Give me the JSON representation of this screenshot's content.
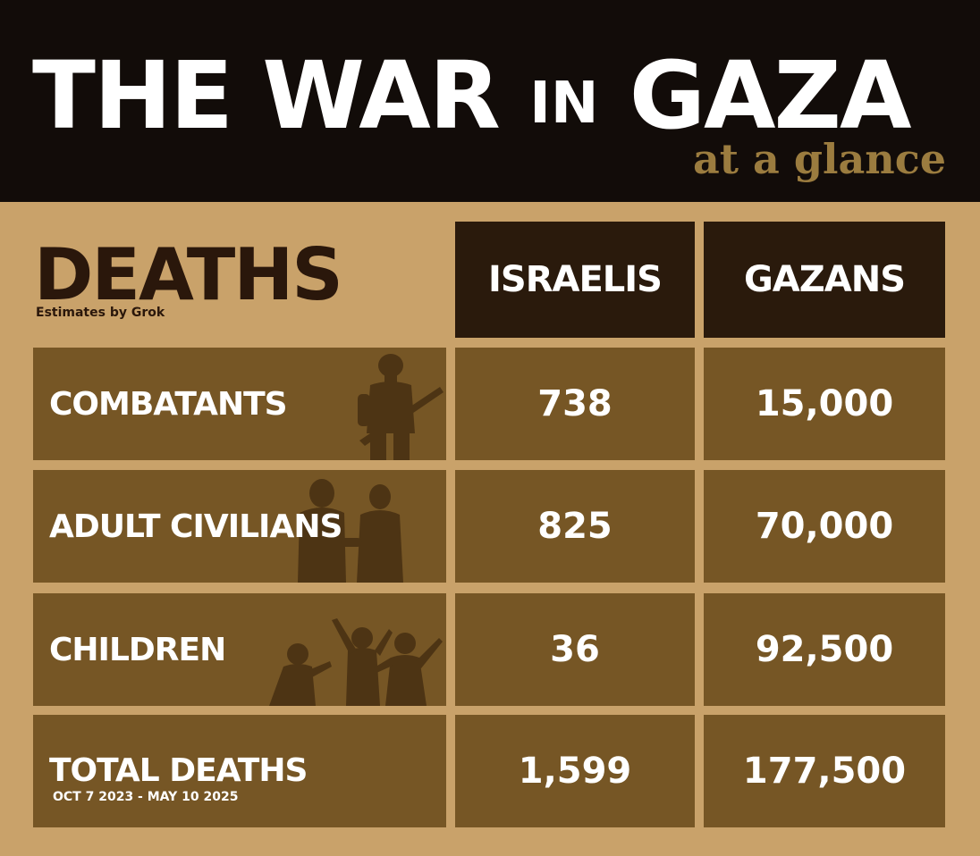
{
  "header": {
    "title_words": [
      "THE",
      "WAR",
      "IN",
      "GAZA"
    ],
    "subtitle": "at a glance"
  },
  "section": {
    "heading": "DEATHS",
    "source": "Estimates by Grok"
  },
  "columns": [
    "ISRAELIS",
    "GAZANS"
  ],
  "rows": [
    {
      "label": "COMBATANTS",
      "israelis": "738",
      "gazans": "15,000",
      "icon": "soldier-silhouette-icon"
    },
    {
      "label": "ADULT CIVILIANS",
      "israelis": "825",
      "gazans": "70,000",
      "icon": "adults-silhouette-icon"
    },
    {
      "label": "CHILDREN",
      "israelis": "36",
      "gazans": "92,500",
      "icon": "children-silhouette-icon"
    }
  ],
  "total": {
    "label": "TOTAL DEATHS",
    "date_range": "OCT 7 2023 - MAY 10 2025",
    "israelis": "1,599",
    "gazans": "177,500"
  },
  "colors": {
    "header_bg": "#120c09",
    "page_bg": "#c9a26a",
    "cell_bg": "#765625",
    "column_header_bg": "#2a1a0c",
    "accent_gold": "#9b7c3f",
    "silhouette": "#4d3414"
  }
}
